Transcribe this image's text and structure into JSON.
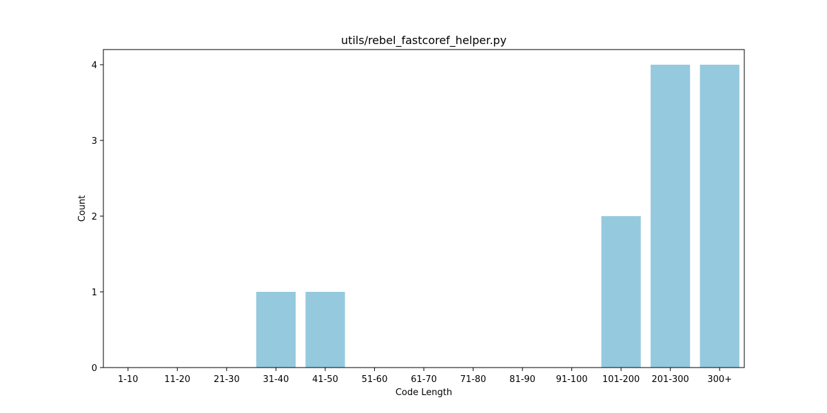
{
  "chart_data": {
    "type": "bar",
    "title": "utils/rebel_fastcoref_helper.py",
    "xlabel": "Code Length",
    "ylabel": "Count",
    "categories": [
      "1-10",
      "11-20",
      "21-30",
      "31-40",
      "41-50",
      "51-60",
      "61-70",
      "71-80",
      "81-90",
      "91-100",
      "101-200",
      "201-300",
      "300+"
    ],
    "values": [
      0,
      0,
      0,
      1,
      1,
      0,
      0,
      0,
      0,
      0,
      2,
      4,
      4
    ],
    "yticks": [
      0,
      1,
      2,
      3,
      4
    ],
    "ylim": [
      0,
      4.2
    ],
    "grid": false,
    "bar_color": "#95c9de"
  }
}
